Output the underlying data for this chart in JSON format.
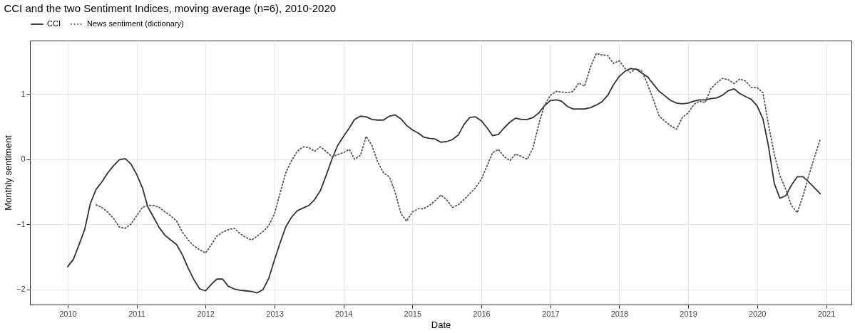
{
  "chart_data": {
    "type": "line",
    "title": "CCI and the two Sentiment Indices, moving average (n=6), 2010-2020",
    "xlabel": "Date",
    "ylabel": "Monthly sentiment",
    "x": [
      "2010-01",
      "2010-02",
      "2010-03",
      "2010-04",
      "2010-05",
      "2010-06",
      "2010-07",
      "2010-08",
      "2010-09",
      "2010-10",
      "2010-11",
      "2010-12",
      "2011-01",
      "2011-02",
      "2011-03",
      "2011-04",
      "2011-05",
      "2011-06",
      "2011-07",
      "2011-08",
      "2011-09",
      "2011-10",
      "2011-11",
      "2011-12",
      "2012-01",
      "2012-02",
      "2012-03",
      "2012-04",
      "2012-05",
      "2012-06",
      "2012-07",
      "2012-08",
      "2012-09",
      "2012-10",
      "2012-11",
      "2012-12",
      "2013-01",
      "2013-02",
      "2013-03",
      "2013-04",
      "2013-05",
      "2013-06",
      "2013-07",
      "2013-08",
      "2013-09",
      "2013-10",
      "2013-11",
      "2013-12",
      "2014-01",
      "2014-02",
      "2014-03",
      "2014-04",
      "2014-05",
      "2014-06",
      "2014-07",
      "2014-08",
      "2014-09",
      "2014-10",
      "2014-11",
      "2014-12",
      "2015-01",
      "2015-02",
      "2015-03",
      "2015-04",
      "2015-05",
      "2015-06",
      "2015-07",
      "2015-08",
      "2015-09",
      "2015-10",
      "2015-11",
      "2015-12",
      "2016-01",
      "2016-02",
      "2016-03",
      "2016-04",
      "2016-05",
      "2016-06",
      "2016-07",
      "2016-08",
      "2016-09",
      "2016-10",
      "2016-11",
      "2016-12",
      "2017-01",
      "2017-02",
      "2017-03",
      "2017-04",
      "2017-05",
      "2017-06",
      "2017-07",
      "2017-08",
      "2017-09",
      "2017-10",
      "2017-11",
      "2017-12",
      "2018-01",
      "2018-02",
      "2018-03",
      "2018-04",
      "2018-05",
      "2018-06",
      "2018-07",
      "2018-08",
      "2018-09",
      "2018-10",
      "2018-11",
      "2018-12",
      "2019-01",
      "2019-02",
      "2019-03",
      "2019-04",
      "2019-05",
      "2019-06",
      "2019-07",
      "2019-08",
      "2019-09",
      "2019-10",
      "2019-11",
      "2019-12",
      "2020-01",
      "2020-02",
      "2020-03",
      "2020-04",
      "2020-05",
      "2020-06",
      "2020-07",
      "2020-08",
      "2020-09",
      "2020-10",
      "2020-11",
      "2020-12"
    ],
    "series": [
      {
        "name": "CCI",
        "color": "#333333",
        "line_style": "solid",
        "values": [
          -1.65,
          -1.53,
          -1.32,
          -1.08,
          -0.68,
          -0.46,
          -0.35,
          -0.21,
          -0.1,
          -0.01,
          0.01,
          -0.07,
          -0.23,
          -0.44,
          -0.73,
          -0.89,
          -1.05,
          -1.17,
          -1.24,
          -1.31,
          -1.47,
          -1.67,
          -1.85,
          -1.99,
          -2.02,
          -1.92,
          -1.84,
          -1.84,
          -1.95,
          -1.99,
          -2.01,
          -2.02,
          -2.03,
          -2.05,
          -2.0,
          -1.83,
          -1.54,
          -1.27,
          -1.04,
          -0.89,
          -0.79,
          -0.75,
          -0.71,
          -0.62,
          -0.48,
          -0.25,
          0.0,
          0.21,
          0.35,
          0.48,
          0.61,
          0.66,
          0.65,
          0.61,
          0.6,
          0.6,
          0.66,
          0.68,
          0.62,
          0.52,
          0.45,
          0.4,
          0.34,
          0.32,
          0.31,
          0.26,
          0.27,
          0.3,
          0.37,
          0.53,
          0.64,
          0.65,
          0.59,
          0.48,
          0.36,
          0.38,
          0.48,
          0.57,
          0.63,
          0.61,
          0.61,
          0.64,
          0.71,
          0.82,
          0.9,
          0.91,
          0.89,
          0.81,
          0.77,
          0.77,
          0.77,
          0.79,
          0.83,
          0.88,
          0.98,
          1.14,
          1.27,
          1.35,
          1.39,
          1.38,
          1.32,
          1.26,
          1.15,
          1.04,
          0.97,
          0.9,
          0.86,
          0.85,
          0.86,
          0.89,
          0.91,
          0.91,
          0.93,
          0.94,
          0.98,
          1.05,
          1.08,
          1.01,
          0.96,
          0.92,
          0.82,
          0.62,
          0.21,
          -0.37,
          -0.6,
          -0.56,
          -0.4,
          -0.27,
          -0.27,
          -0.35,
          -0.44,
          -0.53
        ]
      },
      {
        "name": "News sentiment (dictionary)",
        "color": "#555555",
        "line_style": "dotted",
        "values": [
          null,
          null,
          null,
          null,
          null,
          -0.7,
          -0.74,
          -0.81,
          -0.91,
          -1.04,
          -1.06,
          -1.0,
          -0.87,
          -0.74,
          -0.71,
          -0.71,
          -0.74,
          -0.81,
          -0.87,
          -0.95,
          -1.12,
          -1.24,
          -1.33,
          -1.39,
          -1.44,
          -1.31,
          -1.18,
          -1.12,
          -1.08,
          -1.06,
          -1.14,
          -1.2,
          -1.24,
          -1.18,
          -1.11,
          -1.02,
          -0.83,
          -0.5,
          -0.21,
          -0.02,
          0.12,
          0.19,
          0.18,
          0.12,
          0.19,
          0.12,
          0.04,
          0.07,
          0.1,
          0.15,
          0.0,
          0.06,
          0.35,
          0.21,
          -0.04,
          -0.21,
          -0.27,
          -0.5,
          -0.83,
          -0.95,
          -0.81,
          -0.76,
          -0.76,
          -0.71,
          -0.64,
          -0.55,
          -0.62,
          -0.74,
          -0.7,
          -0.62,
          -0.53,
          -0.44,
          -0.31,
          -0.1,
          0.1,
          0.15,
          0.04,
          -0.02,
          0.08,
          0.04,
          0.0,
          0.17,
          0.54,
          0.83,
          0.98,
          1.04,
          1.03,
          1.02,
          1.04,
          1.17,
          1.12,
          1.41,
          1.62,
          1.6,
          1.59,
          1.47,
          1.51,
          1.39,
          1.33,
          1.39,
          1.35,
          1.14,
          0.91,
          0.66,
          0.58,
          0.51,
          0.46,
          0.64,
          0.71,
          0.84,
          0.89,
          0.87,
          1.08,
          1.17,
          1.24,
          1.22,
          1.16,
          1.23,
          1.2,
          1.1,
          1.1,
          1.02,
          0.54,
          0.08,
          -0.25,
          -0.46,
          -0.71,
          -0.82,
          -0.56,
          -0.25,
          0.04,
          0.31
        ]
      }
    ],
    "xlim": [
      "2009-06-15",
      "2021-05-15"
    ],
    "xticks": [
      "2010",
      "2011",
      "2012",
      "2013",
      "2014",
      "2015",
      "2016",
      "2017",
      "2018",
      "2019",
      "2020",
      "2021"
    ],
    "ylim": [
      -2.23,
      1.82
    ],
    "yticks": [
      -2,
      -1,
      0,
      1
    ],
    "grid": true,
    "legend": "top"
  }
}
